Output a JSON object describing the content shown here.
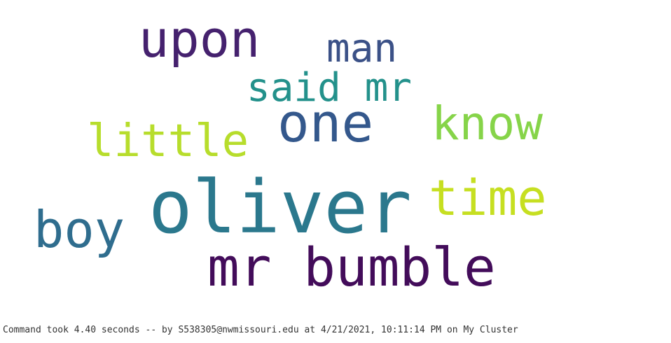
{
  "wordcloud": {
    "words": [
      {
        "text": "upon",
        "color": "#45216e"
      },
      {
        "text": "man",
        "color": "#3b5187"
      },
      {
        "text": "said mr",
        "color": "#23918b"
      },
      {
        "text": "one",
        "color": "#34588c"
      },
      {
        "text": "know",
        "color": "#86d449"
      },
      {
        "text": "little",
        "color": "#b7dd2c"
      },
      {
        "text": "oliver",
        "color": "#2b788d"
      },
      {
        "text": "time",
        "color": "#c6df21"
      },
      {
        "text": "boy",
        "color": "#2f6d8e"
      },
      {
        "text": "mr bumble",
        "color": "#430c5a"
      }
    ]
  },
  "status": {
    "text": "Command took 4.40 seconds -- by S538305@nwmissouri.edu at 4/21/2021, 10:11:14 PM on My Cluster"
  }
}
